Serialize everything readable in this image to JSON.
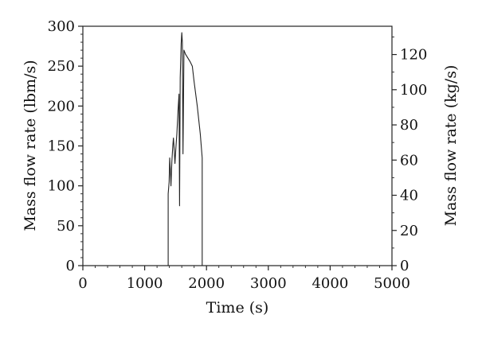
{
  "chart_data": {
    "type": "line",
    "xlabel": "Time (s)",
    "ylabel_left": "Mass flow rate (lbm/s)",
    "ylabel_right": "Mass flow rate (kg/s)",
    "xlim": [
      0,
      5000
    ],
    "ylim_left": [
      0,
      300
    ],
    "ylim_right": [
      0,
      136.08
    ],
    "x_ticks": [
      "0",
      "1000",
      "2000",
      "3000",
      "4000",
      "5000"
    ],
    "y_left_ticks": [
      "0",
      "50",
      "100",
      "150",
      "200",
      "250",
      "300"
    ],
    "y_right_ticks": [
      "0",
      "20",
      "40",
      "60",
      "80",
      "100",
      "120"
    ],
    "grid": false,
    "series": [
      {
        "points": [
          [
            1380,
            0
          ],
          [
            1380,
            90
          ],
          [
            1395,
            105
          ],
          [
            1405,
            135
          ],
          [
            1415,
            120
          ],
          [
            1425,
            100
          ],
          [
            1440,
            130
          ],
          [
            1455,
            150
          ],
          [
            1465,
            160
          ],
          [
            1478,
            145
          ],
          [
            1490,
            128
          ],
          [
            1505,
            148
          ],
          [
            1520,
            165
          ],
          [
            1540,
            195
          ],
          [
            1555,
            215
          ],
          [
            1565,
            75
          ],
          [
            1575,
            235
          ],
          [
            1590,
            278
          ],
          [
            1600,
            292
          ],
          [
            1610,
            280
          ],
          [
            1620,
            140
          ],
          [
            1635,
            270
          ],
          [
            1660,
            265
          ],
          [
            1700,
            260
          ],
          [
            1740,
            255
          ],
          [
            1770,
            250
          ],
          [
            1800,
            230
          ],
          [
            1850,
            200
          ],
          [
            1900,
            165
          ],
          [
            1930,
            135
          ],
          [
            1930,
            0
          ]
        ]
      }
    ]
  }
}
